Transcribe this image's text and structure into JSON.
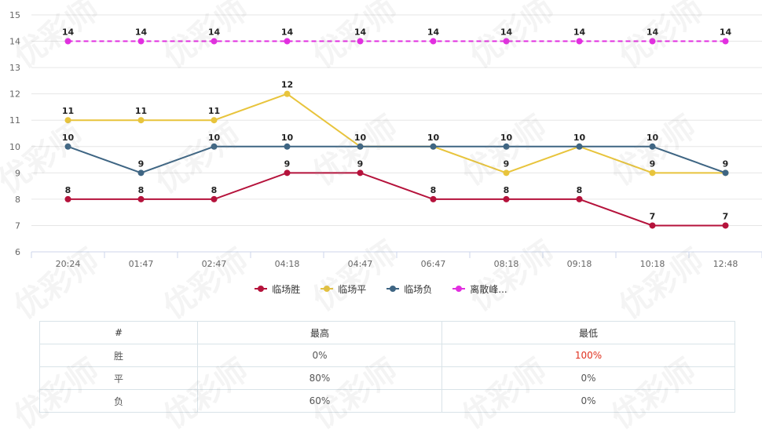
{
  "chart_data": {
    "type": "line",
    "title": "",
    "x": [
      "20:24",
      "01:47",
      "02:47",
      "04:18",
      "04:47",
      "06:47",
      "08:18",
      "09:18",
      "10:18",
      "12:48"
    ],
    "ylim": [
      6,
      15
    ],
    "yticks": [
      6,
      7,
      8,
      9,
      10,
      11,
      12,
      13,
      14,
      15
    ],
    "grid": true,
    "legend_position": "bottom",
    "series": [
      {
        "name": "临场胜",
        "color": "#b5123b",
        "dashed": false,
        "values": [
          8,
          8,
          8,
          9,
          9,
          8,
          8,
          8,
          7,
          7
        ]
      },
      {
        "name": "临场平",
        "color": "#e8c43c",
        "dashed": false,
        "values": [
          11,
          11,
          11,
          12,
          10,
          10,
          9,
          10,
          9,
          9
        ]
      },
      {
        "name": "临场负",
        "color": "#3e6583",
        "dashed": false,
        "values": [
          10,
          9,
          10,
          10,
          10,
          10,
          10,
          10,
          10,
          9
        ]
      },
      {
        "name": "离散峰...",
        "color": "#e22ee0",
        "dashed": true,
        "values": [
          14,
          14,
          14,
          14,
          14,
          14,
          14,
          14,
          14,
          14
        ]
      }
    ]
  },
  "table": {
    "headers": [
      "#",
      "最高",
      "最低"
    ],
    "rows": [
      {
        "label": "胜",
        "high": "0%",
        "low": "100%",
        "low_highlight": true
      },
      {
        "label": "平",
        "high": "80%",
        "low": "0%",
        "low_highlight": false
      },
      {
        "label": "负",
        "high": "60%",
        "low": "0%",
        "low_highlight": false
      }
    ],
    "highlight_color": "#e0301e"
  },
  "watermark": "优彩师"
}
